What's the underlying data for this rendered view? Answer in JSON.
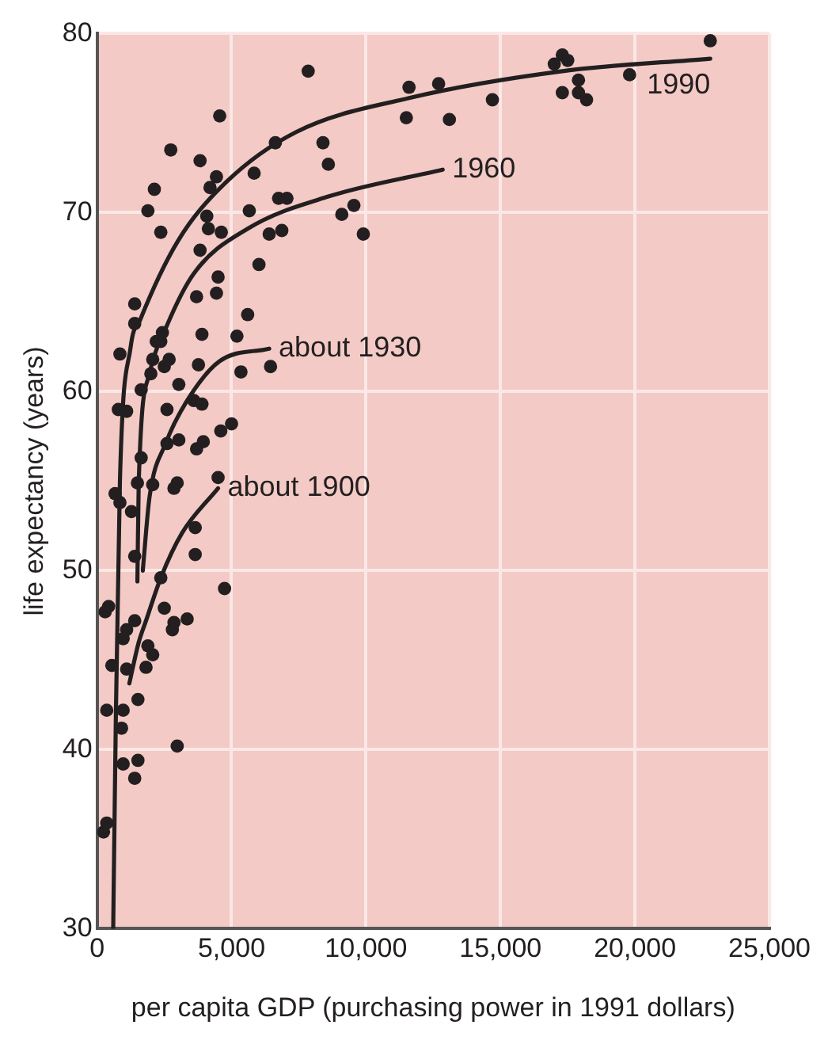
{
  "chart_data": {
    "type": "scatter",
    "xlabel": "per capita GDP (purchasing power in 1991 dollars)",
    "ylabel": "life expectancy (years)",
    "xlim": [
      0,
      25000
    ],
    "ylim": [
      30,
      80
    ],
    "xticks": [
      0,
      {
        "value": 5000,
        "label": "5,000"
      },
      {
        "value": 10000,
        "label": "10,000"
      },
      {
        "value": 15000,
        "label": "15,000"
      },
      {
        "value": 20000,
        "label": "20,000"
      },
      {
        "value": 25000,
        "label": "25,000"
      }
    ],
    "yticks": [
      30,
      40,
      50,
      60,
      70,
      80
    ],
    "grid": true,
    "legend": false,
    "marker": "circle",
    "series": [
      {
        "type": "scatter",
        "color": "#231f20",
        "x": [
          22800,
          7850,
          17300,
          17000,
          17500,
          17900,
          19800,
          17300,
          17900,
          18200,
          11600,
          12700,
          14700,
          11500,
          13100,
          8400,
          8600,
          9100,
          9550,
          9900,
          4560,
          2740,
          3830,
          6630,
          4440,
          4200,
          2130,
          5840,
          1890,
          4080,
          4140,
          4620,
          2370,
          5660,
          6750,
          7060,
          6400,
          6870,
          3830,
          6020,
          4500,
          4440,
          3700,
          5600,
          1400,
          1400,
          2430,
          3900,
          5200,
          2370,
          2200,
          850,
          2070,
          2680,
          2500,
          3770,
          2000,
          5350,
          6450,
          3040,
          1640,
          3600,
          3900,
          790,
          1100,
          2600,
          5000,
          4600,
          3040,
          2600,
          3950,
          3700,
          1640,
          1500,
          2070,
          2980,
          2860,
          4500,
          670,
          850,
          1280,
          3650,
          1400,
          3650,
          2370,
          4740,
          430,
          300,
          2500,
          3350,
          2860,
          1400,
          1100,
          2800,
          970,
          1890,
          2070,
          550,
          1100,
          1820,
          1520,
          360,
          970,
          910,
          2980,
          970,
          1520,
          1400,
          360,
          240
        ],
        "values": [
          79.6,
          77.9,
          78.8,
          78.3,
          78.5,
          77.4,
          77.7,
          76.7,
          76.7,
          76.3,
          77.0,
          77.2,
          76.3,
          75.3,
          75.2,
          73.9,
          72.7,
          69.9,
          70.4,
          68.8,
          75.4,
          73.5,
          72.9,
          73.9,
          72.0,
          71.4,
          71.3,
          72.2,
          70.1,
          69.8,
          69.1,
          68.9,
          68.9,
          70.1,
          70.8,
          70.8,
          68.8,
          69.0,
          67.9,
          67.1,
          66.4,
          65.5,
          65.3,
          64.3,
          64.9,
          63.8,
          63.3,
          63.2,
          63.1,
          62.8,
          62.8,
          62.1,
          61.8,
          61.8,
          61.4,
          61.5,
          61.0,
          61.1,
          61.4,
          60.4,
          60.1,
          59.5,
          59.3,
          59.0,
          58.9,
          59.0,
          58.2,
          57.8,
          57.3,
          57.1,
          57.2,
          56.8,
          56.3,
          54.9,
          54.8,
          54.9,
          54.6,
          55.2,
          54.3,
          53.8,
          53.3,
          52.4,
          50.8,
          50.9,
          49.6,
          49.0,
          48.0,
          47.7,
          47.9,
          47.3,
          47.1,
          47.2,
          46.7,
          46.7,
          46.2,
          45.8,
          45.3,
          44.7,
          44.5,
          44.6,
          42.8,
          42.2,
          42.2,
          41.2,
          40.2,
          39.2,
          39.4,
          38.4,
          35.9,
          35.4
        ]
      },
      {
        "type": "line",
        "name": "1990",
        "marker": "none",
        "color": "#231f20",
        "x": [
          600,
          700,
          850,
          1250,
          1600,
          3000,
          4800,
          7400,
          11600,
          17300,
          22800
        ],
        "values": [
          30,
          42,
          55,
          62.5,
          64,
          68.4,
          71.7,
          74.5,
          76.4,
          77.9,
          78.6
        ]
      },
      {
        "type": "line",
        "name": "1960",
        "marker": "none",
        "color": "#231f20",
        "x": [
          1500,
          1550,
          1950,
          2600,
          3600,
          5600,
          8600,
          12850
        ],
        "values": [
          49.4,
          55,
          61,
          63.7,
          66.6,
          69.1,
          70.9,
          72.4
        ]
      },
      {
        "type": "line",
        "name": "about 1930",
        "marker": "none",
        "color": "#231f20",
        "x": [
          1700,
          1950,
          2550,
          3350,
          4560,
          6400
        ],
        "values": [
          50,
          54.1,
          57.1,
          59.5,
          61.7,
          62.4
        ]
      },
      {
        "type": "line",
        "name": "about 1900",
        "marker": "none",
        "color": "#231f20",
        "x": [
          1200,
          1550,
          1820,
          2370,
          3160,
          4500
        ],
        "values": [
          43.7,
          46,
          47.2,
          49.6,
          52.1,
          54.6
        ]
      }
    ]
  }
}
